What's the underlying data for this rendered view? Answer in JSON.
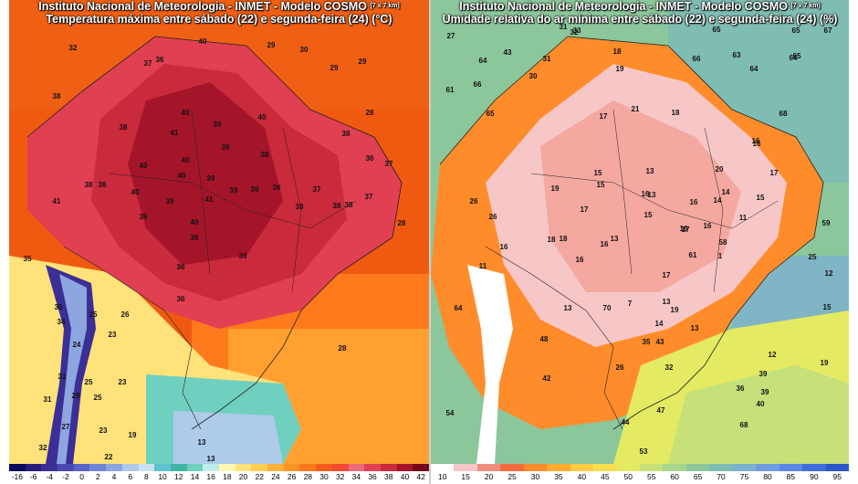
{
  "left_panel": {
    "title_line1": "Instituto Nacional de Meteorologia - INMET - Modelo COSMO",
    "title_res": "[7 x 7 km]",
    "title_line2": "Temperatura máxima entre sábado (22) e segunda-feira (24) (°C)",
    "colorbar_ticks": [
      "-16",
      "-6",
      "-4",
      "-2",
      "0",
      "2",
      "4",
      "6",
      "8",
      "10",
      "12",
      "14",
      "16",
      "18",
      "20",
      "22",
      "24",
      "26",
      "28",
      "30",
      "32",
      "34",
      "36",
      "38",
      "40",
      "42"
    ],
    "colorbar_colors": [
      "#0a0a5a",
      "#2a1b7a",
      "#3b2f96",
      "#4a49b3",
      "#5a64c8",
      "#6f84d6",
      "#8ea6e0",
      "#aecbea",
      "#c8e2f0",
      "#5fc2cf",
      "#3fb5a6",
      "#6fd0c0",
      "#bfeee8",
      "#fff7b0",
      "#ffe27a",
      "#ffcf55",
      "#ffb13a",
      "#ff9426",
      "#ff7a1c",
      "#fb5b1a",
      "#f34a33",
      "#ee6b7a",
      "#e13f52",
      "#c92a3c",
      "#a4152a",
      "#74071a"
    ],
    "values": [
      "32",
      "40",
      "29",
      "37",
      "36",
      "30",
      "29",
      "29",
      "38",
      "28",
      "40",
      "38",
      "41",
      "39",
      "40",
      "38",
      "40",
      "40",
      "39",
      "38",
      "36",
      "37",
      "41",
      "40",
      "39",
      "38",
      "38",
      "41",
      "39",
      "38",
      "40",
      "39",
      "39",
      "36",
      "37",
      "37",
      "38",
      "38",
      "40",
      "39",
      "38",
      "28",
      "35",
      "39",
      "26",
      "25",
      "36",
      "36",
      "35",
      "34",
      "23",
      "24",
      "31",
      "25",
      "23",
      "31",
      "29",
      "25",
      "28",
      "27",
      "23",
      "19",
      "13",
      "22",
      "32",
      "13"
    ],
    "color_cold_ocean": "#ffb34a",
    "color_warm_ocean": "#f05a10",
    "color_hot_land": "#b11f2e"
  },
  "right_panel": {
    "title_line1": "Instituto Nacional de Meteorologia - INMET - Modelo COSMO",
    "title_res": "[7 x 7 km]",
    "title_line2": "Umidade relativa do ar mínima entre sábado (22) e segunda-feira (24) (%)",
    "colorbar_ticks": [
      "10",
      "15",
      "20",
      "25",
      "30",
      "35",
      "40",
      "45",
      "50",
      "55",
      "60",
      "65",
      "70",
      "75",
      "80",
      "85",
      "90",
      "95"
    ],
    "colorbar_colors": [
      "#ffffff",
      "#f7c7c7",
      "#ee8e7e",
      "#f46b3c",
      "#ff8c2a",
      "#ffab2e",
      "#ffcc45",
      "#f7e050",
      "#e4ea62",
      "#c6e07a",
      "#a9d48c",
      "#8cc69b",
      "#7fbcb2",
      "#7cb0cf",
      "#6e9be0",
      "#5a86e6",
      "#3e6dd9",
      "#2c56c9"
    ],
    "values": [
      "27",
      "31",
      "33",
      "32",
      "65",
      "65",
      "67",
      "64",
      "43",
      "31",
      "18",
      "66",
      "63",
      "64",
      "30",
      "19",
      "64",
      "65",
      "61",
      "66",
      "21",
      "18",
      "65",
      "68",
      "17",
      "16",
      "16",
      "15",
      "13",
      "20",
      "17",
      "19",
      "15",
      "16",
      "13",
      "14",
      "14",
      "26",
      "17",
      "16",
      "15",
      "11",
      "26",
      "15",
      "16",
      "59",
      "13",
      "18",
      "18",
      "16",
      "16",
      "17",
      "58",
      "25",
      "16",
      "16",
      "17",
      "61",
      "1",
      "12",
      "11",
      "7",
      "70",
      "19",
      "64",
      "13",
      "15",
      "14",
      "13",
      "13",
      "35",
      "43",
      "48",
      "12",
      "19",
      "26",
      "32",
      "42",
      "39",
      "36",
      "39",
      "40",
      "47",
      "68",
      "44",
      "54",
      "53"
    ]
  }
}
